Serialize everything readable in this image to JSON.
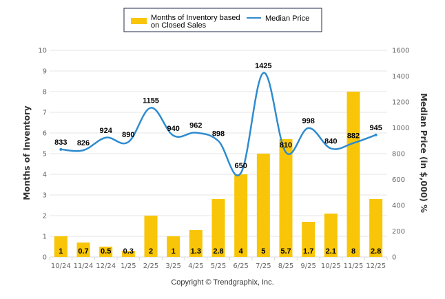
{
  "chart_data": {
    "type": "bar",
    "title": "",
    "categories": [
      "10/24",
      "11/24",
      "12/24",
      "1/25",
      "2/25",
      "3/25",
      "4/25",
      "5/25",
      "6/25",
      "7/25",
      "8/25",
      "9/25",
      "10/25",
      "11/25",
      "12/25"
    ],
    "series": [
      {
        "name": "Months of Inventory based on Closed Sales",
        "type": "bar",
        "axis": "left",
        "color": "#F8C508",
        "values": [
          1,
          0.7,
          0.5,
          0.3,
          2,
          1,
          1.3,
          2.8,
          4,
          5,
          5.7,
          1.7,
          2.1,
          8,
          2.8
        ],
        "labels": [
          "1",
          "0.7",
          "0.5",
          "0.3",
          "2",
          "1",
          "1.3",
          "2.8",
          "4",
          "5",
          "5.7",
          "1.7",
          "2.1",
          "8",
          "2.8"
        ]
      },
      {
        "name": "Median Price",
        "type": "line",
        "axis": "right",
        "color": "#2E8BCF",
        "values": [
          833,
          826,
          924,
          890,
          1155,
          940,
          962,
          898,
          650,
          1425,
          810,
          998,
          840,
          882,
          945
        ],
        "labels": [
          "833",
          "826",
          "924",
          "890",
          "1155",
          "940",
          "962",
          "898",
          "650",
          "1425",
          "810",
          "998",
          "840",
          "882",
          "945"
        ]
      }
    ],
    "ylabel": "Months of Inventory",
    "y2label": "Median Price (in $,000) %",
    "xlabel": "",
    "ylim": [
      0,
      10
    ],
    "y2lim": [
      0,
      1600
    ],
    "yticks": [
      "0",
      "1",
      "2",
      "3",
      "4",
      "5",
      "6",
      "7",
      "8",
      "9",
      "10"
    ],
    "y2ticks": [
      "0",
      "200",
      "400",
      "600",
      "800",
      "1000",
      "1200",
      "1400",
      "1600"
    ],
    "grid": true,
    "legend_position": "top-center",
    "legend": [
      {
        "label_line1": "Months of Inventory based",
        "label_line2": "on Closed Sales",
        "swatch": "bar"
      },
      {
        "label": "Median Price",
        "swatch": "line"
      }
    ]
  },
  "footer": {
    "copyright": "Copyright © Trendgraphix, Inc."
  }
}
